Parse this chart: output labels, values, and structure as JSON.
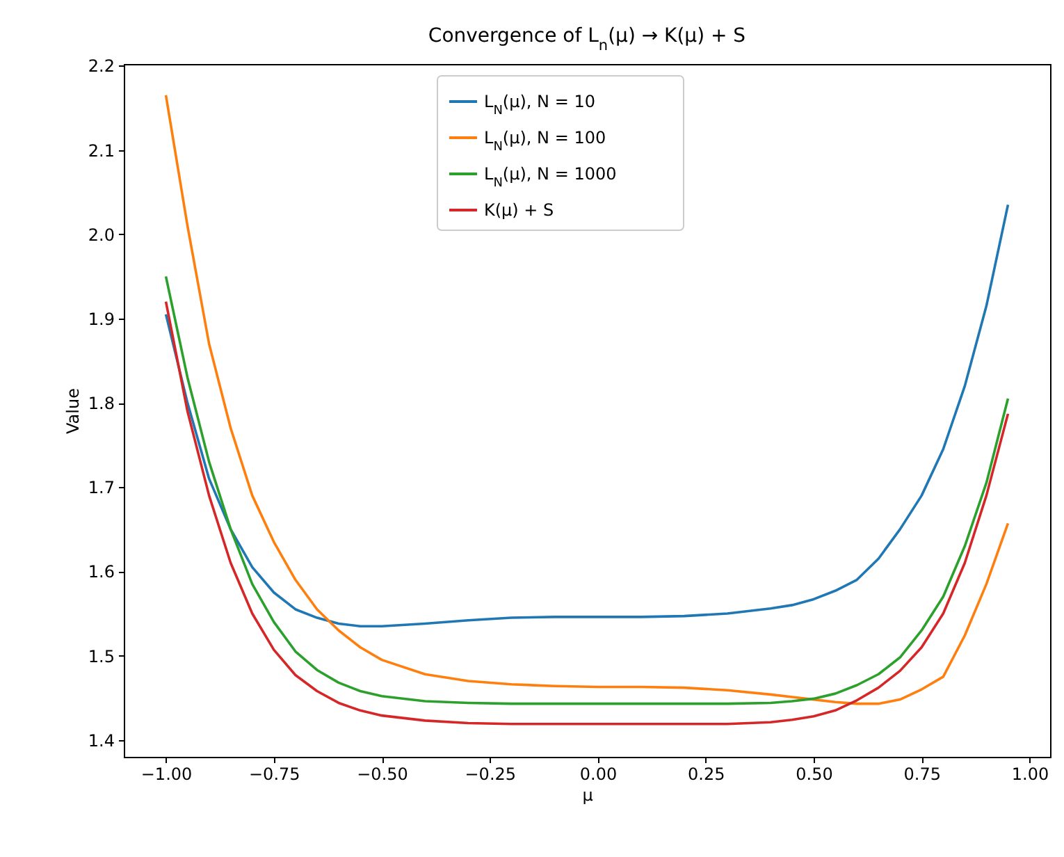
{
  "chart_data": {
    "type": "line",
    "title": "Convergence of L$_{n}$(μ) → K(μ) + S",
    "xlabel": "μ",
    "ylabel": "Value",
    "x": [
      -1,
      -0.95,
      -0.9,
      -0.85,
      -0.8,
      -0.75,
      -0.7,
      -0.65,
      -0.6,
      -0.55,
      -0.5,
      -0.4,
      -0.3,
      -0.2,
      -0.1,
      0,
      0.1,
      0.2,
      0.3,
      0.4,
      0.45,
      0.5,
      0.55,
      0.6,
      0.65,
      0.7,
      0.75,
      0.8,
      0.85,
      0.9,
      0.95
    ],
    "series": [
      {
        "name": "L$_{N}$(μ), N = 10",
        "color": "#1f77b4",
        "values": [
          1.905,
          1.8,
          1.71,
          1.65,
          1.605,
          1.575,
          1.555,
          1.545,
          1.538,
          1.535,
          1.535,
          1.538,
          1.542,
          1.545,
          1.546,
          1.546,
          1.546,
          1.547,
          1.55,
          1.556,
          1.56,
          1.567,
          1.577,
          1.59,
          1.615,
          1.65,
          1.69,
          1.745,
          1.82,
          1.915,
          2.035
        ]
      },
      {
        "name": "L$_{N}$(μ), N = 100",
        "color": "#ff7f0e",
        "values": [
          2.165,
          2.01,
          1.87,
          1.77,
          1.69,
          1.635,
          1.59,
          1.555,
          1.53,
          1.51,
          1.495,
          1.478,
          1.47,
          1.466,
          1.464,
          1.463,
          1.463,
          1.462,
          1.459,
          1.454,
          1.451,
          1.448,
          1.445,
          1.443,
          1.443,
          1.448,
          1.46,
          1.475,
          1.524,
          1.585,
          1.657
        ]
      },
      {
        "name": "L$_{N}$(μ), N = 1000",
        "color": "#2ca02c",
        "values": [
          1.95,
          1.83,
          1.73,
          1.65,
          1.585,
          1.54,
          1.505,
          1.483,
          1.468,
          1.458,
          1.452,
          1.446,
          1.444,
          1.443,
          1.443,
          1.443,
          1.443,
          1.443,
          1.443,
          1.444,
          1.446,
          1.449,
          1.455,
          1.465,
          1.478,
          1.498,
          1.53,
          1.57,
          1.63,
          1.705,
          1.805
        ]
      },
      {
        "name": "K(μ) + S",
        "color": "#d62728",
        "values": [
          1.92,
          1.79,
          1.69,
          1.61,
          1.55,
          1.507,
          1.477,
          1.458,
          1.444,
          1.435,
          1.429,
          1.423,
          1.42,
          1.419,
          1.419,
          1.419,
          1.419,
          1.419,
          1.419,
          1.421,
          1.424,
          1.428,
          1.435,
          1.447,
          1.462,
          1.482,
          1.51,
          1.55,
          1.61,
          1.69,
          1.787
        ]
      }
    ],
    "xlim": [
      -1.0975,
      1.0475
    ],
    "xticks": [
      {
        "value": -1,
        "label": "−1.00"
      },
      {
        "value": -0.75,
        "label": "−0.75"
      },
      {
        "value": -0.5,
        "label": "−0.50"
      },
      {
        "value": -0.25,
        "label": "−0.25"
      },
      {
        "value": 0,
        "label": "0.00"
      },
      {
        "value": 0.25,
        "label": "0.25"
      },
      {
        "value": 0.5,
        "label": "0.50"
      },
      {
        "value": 0.75,
        "label": "0.75"
      },
      {
        "value": 1,
        "label": "1.00"
      }
    ],
    "ylim": [
      1.38,
      2.202
    ],
    "yticks": [
      1.4,
      1.5,
      1.6,
      1.7,
      1.8,
      1.9,
      {
        "value": 2,
        "label": "2.0"
      },
      2.1,
      2.2
    ],
    "grid": false,
    "legend": "top",
    "marker": "none",
    "line_style": "solid"
  }
}
